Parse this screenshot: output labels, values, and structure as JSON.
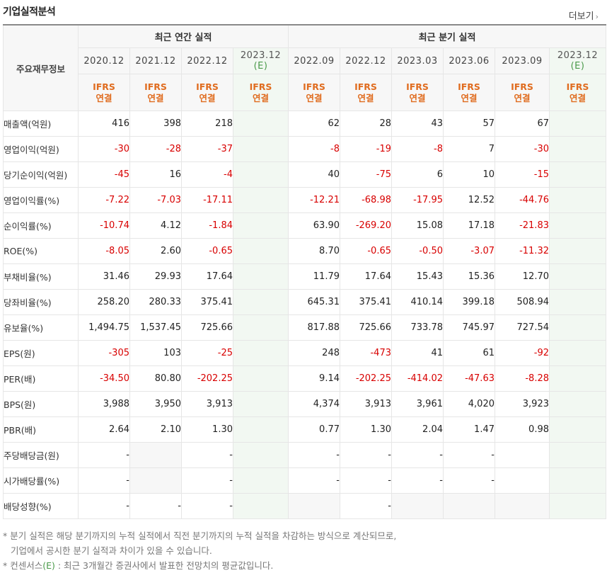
{
  "title": "기업실적분석",
  "more_label": "더보기",
  "table": {
    "row_header": "주요재무정보",
    "group_annual": "최근 연간 실적",
    "group_quarter": "최근 분기 실적",
    "periods": [
      "2020.12",
      "2021.12",
      "2022.12",
      "2023.12",
      "2022.09",
      "2022.12",
      "2023.03",
      "2023.06",
      "2023.09",
      "2023.12"
    ],
    "estimate_mark": "(E)",
    "ifrs_line1": "IFRS",
    "ifrs_line2": "연결",
    "rows": [
      {
        "label": "매출액(억원)",
        "values": [
          "416",
          "398",
          "218",
          "",
          "62",
          "28",
          "43",
          "57",
          "67",
          ""
        ]
      },
      {
        "label": "영업이익(억원)",
        "values": [
          "-30",
          "-28",
          "-37",
          "",
          "-8",
          "-19",
          "-8",
          "7",
          "-30",
          ""
        ]
      },
      {
        "label": "당기순이익(억원)",
        "values": [
          "-45",
          "16",
          "-4",
          "",
          "40",
          "-75",
          "6",
          "10",
          "-15",
          ""
        ]
      },
      {
        "label": "영업이익률(%)",
        "values": [
          "-7.22",
          "-7.03",
          "-17.11",
          "",
          "-12.21",
          "-68.98",
          "-17.95",
          "12.52",
          "-44.76",
          ""
        ]
      },
      {
        "label": "순이익률(%)",
        "values": [
          "-10.74",
          "4.12",
          "-1.84",
          "",
          "63.90",
          "-269.20",
          "15.08",
          "17.18",
          "-21.83",
          ""
        ]
      },
      {
        "label": "ROE(%)",
        "values": [
          "-8.05",
          "2.60",
          "-0.65",
          "",
          "8.70",
          "-0.65",
          "-0.50",
          "-3.07",
          "-11.32",
          ""
        ]
      },
      {
        "label": "부채비율(%)",
        "values": [
          "31.46",
          "29.93",
          "17.64",
          "",
          "11.79",
          "17.64",
          "15.43",
          "15.36",
          "12.70",
          ""
        ]
      },
      {
        "label": "당좌비율(%)",
        "values": [
          "258.20",
          "280.33",
          "375.41",
          "",
          "645.31",
          "375.41",
          "410.14",
          "399.18",
          "508.94",
          ""
        ]
      },
      {
        "label": "유보율(%)",
        "values": [
          "1,494.75",
          "1,537.45",
          "725.66",
          "",
          "817.88",
          "725.66",
          "733.78",
          "745.97",
          "727.54",
          ""
        ]
      },
      {
        "label": "EPS(원)",
        "values": [
          "-305",
          "103",
          "-25",
          "",
          "248",
          "-473",
          "41",
          "61",
          "-92",
          ""
        ]
      },
      {
        "label": "PER(배)",
        "values": [
          "-34.50",
          "80.80",
          "-202.25",
          "",
          "9.14",
          "-202.25",
          "-414.02",
          "-47.63",
          "-8.28",
          ""
        ]
      },
      {
        "label": "BPS(원)",
        "values": [
          "3,988",
          "3,950",
          "3,913",
          "",
          "4,374",
          "3,913",
          "3,961",
          "4,020",
          "3,923",
          ""
        ]
      },
      {
        "label": "PBR(배)",
        "values": [
          "2.64",
          "2.10",
          "1.30",
          "",
          "0.77",
          "1.30",
          "2.04",
          "1.47",
          "0.98",
          ""
        ]
      },
      {
        "label": "주당배당금(원)",
        "values": [
          "-",
          "",
          "-",
          "",
          "-",
          "-",
          "-",
          "-",
          "",
          ""
        ]
      },
      {
        "label": "시가배당률(%)",
        "values": [
          "-",
          "",
          "-",
          "",
          "-",
          "-",
          "-",
          "-",
          "",
          ""
        ]
      },
      {
        "label": "배당성향(%)",
        "values": [
          "-",
          "-",
          "-",
          "",
          "",
          "-",
          "",
          "",
          "",
          ""
        ]
      }
    ]
  },
  "notes": {
    "line1": "* 분기 실적은 해당 분기까지의 누적 실적에서 직전 분기까지의 누적 실적을 차감하는 방식으로 계산되므로,",
    "line2": "기업에서 공시한 분기 실적과 차이가 있을 수 있습니다.",
    "line3_prefix": "* 컨센서스",
    "line3_mark": "(E)",
    "line3_suffix": " : 최근 3개월간 증권사에서 발표한 전망치의 평균값입니다."
  }
}
